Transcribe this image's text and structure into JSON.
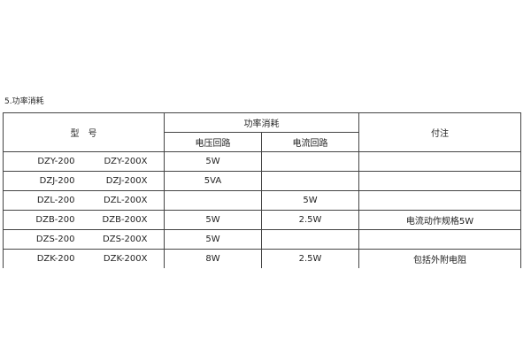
{
  "section_title": "5.功率消耗",
  "headers": {
    "model": "型　号",
    "power": "功率消耗",
    "voltage": "电压回路",
    "current": "电流回路",
    "note": "付注"
  },
  "rows": [
    {
      "model_a": "DZY-200",
      "model_b": "DZY-200X",
      "voltage": "5W",
      "current": "",
      "note": ""
    },
    {
      "model_a": "DZJ-200",
      "model_b": "DZJ-200X",
      "voltage": "5VA",
      "current": "",
      "note": ""
    },
    {
      "model_a": "DZL-200",
      "model_b": "DZL-200X",
      "voltage": "",
      "current": "5W",
      "note": ""
    },
    {
      "model_a": "DZB-200",
      "model_b": "DZB-200X",
      "voltage": "5W",
      "current": "2.5W",
      "note": "电流动作规格5W"
    },
    {
      "model_a": "DZS-200",
      "model_b": "DZS-200X",
      "voltage": "5W",
      "current": "",
      "note": ""
    },
    {
      "model_a": "DZK-200",
      "model_b": "DZK-200X",
      "voltage": "8W",
      "current": "2.5W",
      "note": "包括外附电阻"
    }
  ]
}
